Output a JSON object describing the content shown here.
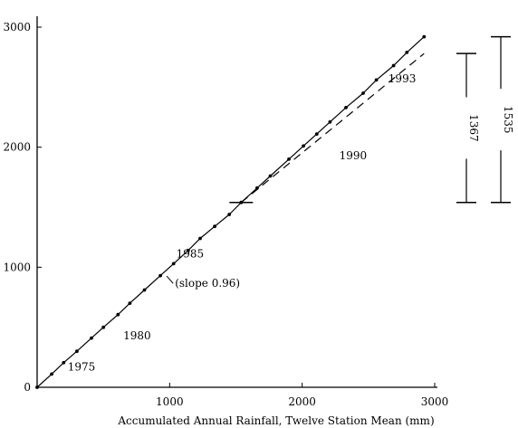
{
  "chart_data": {
    "type": "line",
    "title": "",
    "xlabel": "Accumulated Annual Rainfall,  Twelve Station Mean (mm)",
    "ylabel": "",
    "xlim": [
      0,
      3000
    ],
    "ylim": [
      0,
      3000
    ],
    "grid": false,
    "x_ticks": [
      "1000",
      "2000",
      "3000"
    ],
    "y_ticks": [
      "0",
      "1000",
      "2000",
      "3000"
    ],
    "series": [
      {
        "style": "solid-with-points",
        "points": [
          [
            0,
            0
          ],
          [
            110,
            110
          ],
          [
            200,
            205
          ],
          [
            300,
            300
          ],
          [
            410,
            410
          ],
          [
            500,
            500
          ],
          [
            610,
            605
          ],
          [
            700,
            700
          ],
          [
            810,
            810
          ],
          [
            930,
            930
          ],
          [
            1030,
            1030
          ],
          [
            1140,
            1140
          ],
          [
            1230,
            1240
          ],
          [
            1340,
            1340
          ],
          [
            1450,
            1440
          ],
          [
            1540,
            1540
          ],
          [
            1660,
            1660
          ],
          [
            1760,
            1760
          ],
          [
            1900,
            1900
          ],
          [
            2010,
            2010
          ],
          [
            2110,
            2110
          ],
          [
            2210,
            2210
          ],
          [
            2330,
            2330
          ],
          [
            2460,
            2450
          ],
          [
            2560,
            2560
          ],
          [
            2690,
            2680
          ],
          [
            2790,
            2790
          ],
          [
            2920,
            2920
          ]
        ]
      },
      {
        "style": "dashed",
        "points": [
          [
            1540,
            1540
          ],
          [
            2920,
            2780
          ]
        ]
      }
    ],
    "annotations": [
      {
        "text": "1975",
        "x": 230,
        "y": 140
      },
      {
        "text": "1980",
        "x": 650,
        "y": 400
      },
      {
        "text": "1985",
        "x": 1050,
        "y": 1080
      },
      {
        "text": "(slope 0.96)",
        "x": 1040,
        "y": 835
      },
      {
        "text": "1990",
        "x": 2280,
        "y": 1900
      },
      {
        "text": "1993",
        "x": 2650,
        "y": 2540
      }
    ],
    "brackets": [
      {
        "label": "1367",
        "from": 1540,
        "to": 2780
      },
      {
        "label": "1535",
        "from": 1540,
        "to": 2920
      }
    ]
  }
}
